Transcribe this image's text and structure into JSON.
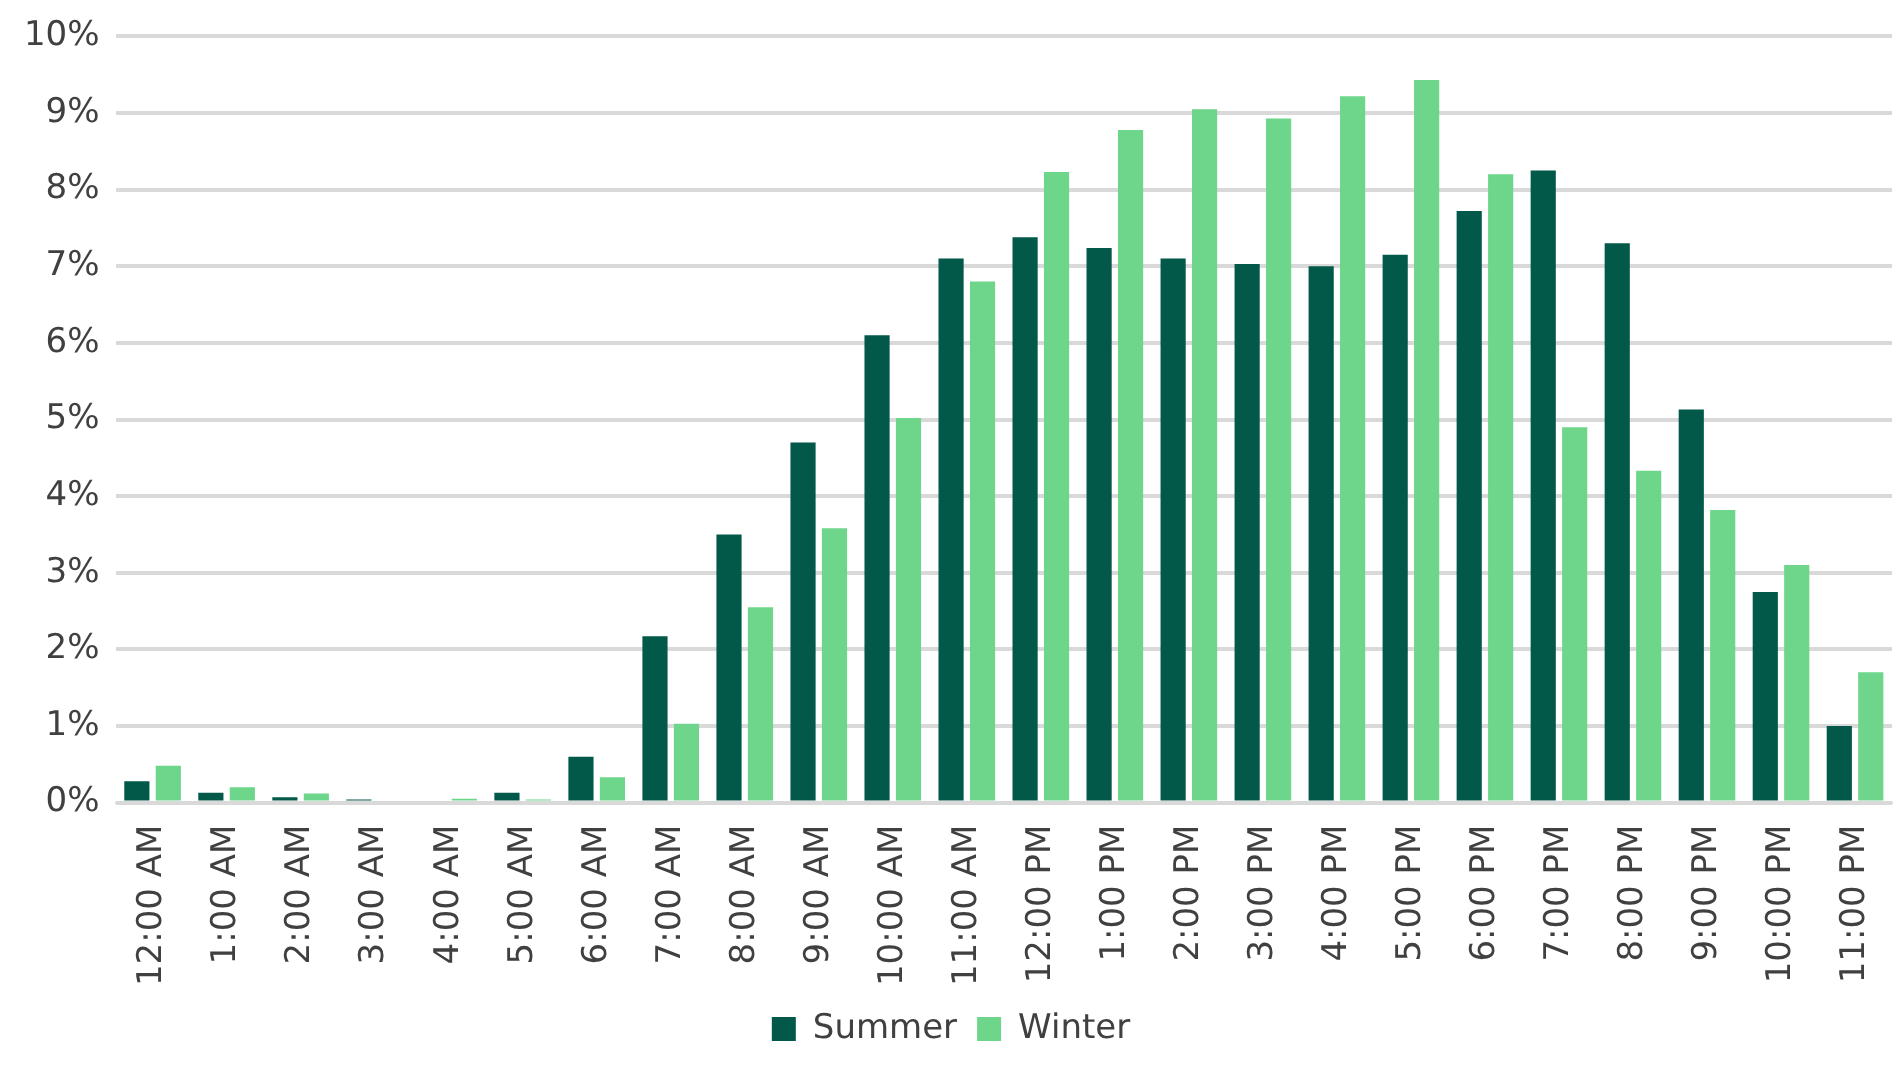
{
  "chart_data": {
    "type": "bar",
    "categories": [
      "12:00 AM",
      "1:00 AM",
      "2:00 AM",
      "3:00 AM",
      "4:00 AM",
      "5:00 AM",
      "6:00 AM",
      "7:00 AM",
      "8:00 AM",
      "9:00 AM",
      "10:00 AM",
      "11:00 AM",
      "12:00 PM",
      "1:00 PM",
      "2:00 PM",
      "3:00 PM",
      "4:00 PM",
      "5:00 PM",
      "6:00 PM",
      "7:00 PM",
      "8:00 PM",
      "9:00 PM",
      "10:00 PM",
      "11:00 PM"
    ],
    "series": [
      {
        "name": "Summer",
        "color": "#02594a",
        "values": [
          0.28,
          0.13,
          0.07,
          0.04,
          0.0,
          0.13,
          0.6,
          2.17,
          3.5,
          4.7,
          6.1,
          7.1,
          7.38,
          7.24,
          7.1,
          7.03,
          7.0,
          7.15,
          7.72,
          8.25,
          7.3,
          5.13,
          2.75,
          1.0
        ]
      },
      {
        "name": "Winter",
        "color": "#6dd68a",
        "values": [
          0.48,
          0.2,
          0.12,
          0.0,
          0.05,
          0.04,
          0.33,
          1.03,
          2.55,
          3.58,
          5.02,
          6.8,
          8.23,
          8.78,
          9.05,
          8.93,
          9.22,
          9.43,
          8.2,
          4.9,
          4.33,
          3.82,
          3.1,
          1.7
        ]
      }
    ],
    "ylim": [
      0,
      10
    ],
    "yticks": [
      {
        "value": 0,
        "label": "0%"
      },
      {
        "value": 1,
        "label": "1%"
      },
      {
        "value": 2,
        "label": "2%"
      },
      {
        "value": 3,
        "label": "3%"
      },
      {
        "value": 4,
        "label": "4%"
      },
      {
        "value": 5,
        "label": "5%"
      },
      {
        "value": 6,
        "label": "6%"
      },
      {
        "value": 7,
        "label": "7%"
      },
      {
        "value": 8,
        "label": "8%"
      },
      {
        "value": 9,
        "label": "9%"
      },
      {
        "value": 10,
        "label": "10%"
      }
    ],
    "grid": "y",
    "legend": "bottom"
  }
}
